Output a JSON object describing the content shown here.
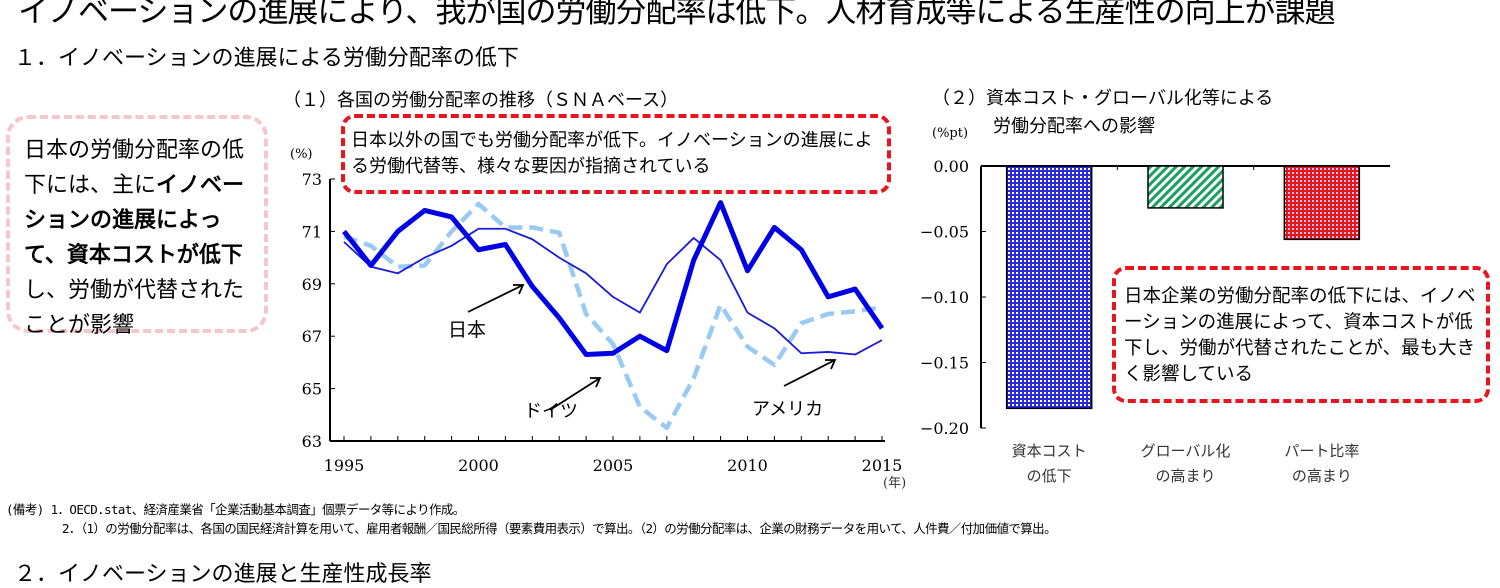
{
  "title": "イノベーションの進展により、我が国の労働分配率は低下。人材育成等による生産性の向上が課題",
  "section1": "１．イノベーションの進展による労働分配率の低下",
  "section2": "２．イノベーションの進展と生産性成長率",
  "left_note": {
    "p1": "日本の労働分配率の低下には、主に",
    "b1": "イノベーションの進展によって、資本コストが低下",
    "p2": "し、労働が代替されたことが影響"
  },
  "notes": {
    "label": "(備考)",
    "line1": "1．OECD.stat、経済産業省「企業活動基本調査」個票データ等により作成。",
    "line2": "2．（1）の労働分配率は、各国の国民経済計算を用いて、雇用者報酬／国民総所得（要素費用表示）で算出。（2）の労働分配率は、企業の財務データを用いて、人件費／付加価値で算出。"
  },
  "colors": {
    "japan": "#0000e6",
    "usa": "#1a1adc",
    "germany": "#99c9f5",
    "callout_border": "#e8141e",
    "note_border": "#f7c6cc",
    "bar_capital": "#2a2ad6",
    "bar_global": "#1aa060",
    "bar_part": "#e01818"
  },
  "chart_data": [
    {
      "type": "line",
      "title": "（１）各国の労働分配率の推移（ＳＮＡベース）",
      "ylabel": "(%)",
      "xlabel": "(年)",
      "ylim": [
        63,
        73
      ],
      "xlim": [
        1995,
        2015
      ],
      "yticks": [
        "73",
        "71",
        "69",
        "67",
        "65",
        "63"
      ],
      "xticks": [
        "1995",
        "2000",
        "2005",
        "2010",
        "2015"
      ],
      "x": [
        1995,
        1996,
        1997,
        1998,
        1999,
        2000,
        2001,
        2002,
        2003,
        2004,
        2005,
        2006,
        2007,
        2008,
        2009,
        2010,
        2011,
        2012,
        2013,
        2014,
        2015
      ],
      "series": [
        {
          "name": "日本",
          "style": "thick",
          "values": [
            71.0,
            69.7,
            71.0,
            71.8,
            71.55,
            70.3,
            70.5,
            68.9,
            67.7,
            66.3,
            66.35,
            67.0,
            66.45,
            69.9,
            72.1,
            69.5,
            71.15,
            70.3,
            68.5,
            68.8,
            67.3
          ]
        },
        {
          "name": "アメリカ",
          "style": "thin",
          "values": [
            70.6,
            69.65,
            69.4,
            70.0,
            70.45,
            71.1,
            71.1,
            70.7,
            70.0,
            69.4,
            68.5,
            67.9,
            69.75,
            70.75,
            69.9,
            67.9,
            67.3,
            66.35,
            66.4,
            66.3,
            66.85
          ]
        },
        {
          "name": "ドイツ",
          "style": "dashed",
          "values": [
            70.8,
            70.45,
            69.65,
            69.7,
            71.0,
            72.05,
            71.15,
            71.15,
            70.95,
            67.85,
            66.7,
            64.3,
            63.5,
            65.4,
            68.2,
            66.6,
            65.9,
            67.5,
            67.85,
            67.95,
            68.1
          ]
        }
      ],
      "annotation": "日本以外の国でも労働分配率が低下。イノベーションの進展による労働代替等、様々な要因が指摘されている"
    },
    {
      "type": "bar",
      "title": "（２）資本コスト・グローバル化等による",
      "title2": "労働分配率への影響",
      "ylabel": "(%pt)",
      "ylim": [
        -0.2,
        0
      ],
      "yticks": [
        "0.00",
        "−0.05",
        "−0.10",
        "−0.15",
        "−0.20"
      ],
      "categories": [
        [
          "資本コスト",
          "の低下"
        ],
        [
          "グローバル化",
          "の高まり"
        ],
        [
          "パート比率",
          "の高まり"
        ]
      ],
      "values": [
        -0.185,
        -0.032,
        -0.056
      ],
      "annotation": "日本企業の労働分配率の低下には、イノベーションの進展によって、資本コストが低下し、労働が代替されたことが、最も大きく影響している"
    }
  ]
}
